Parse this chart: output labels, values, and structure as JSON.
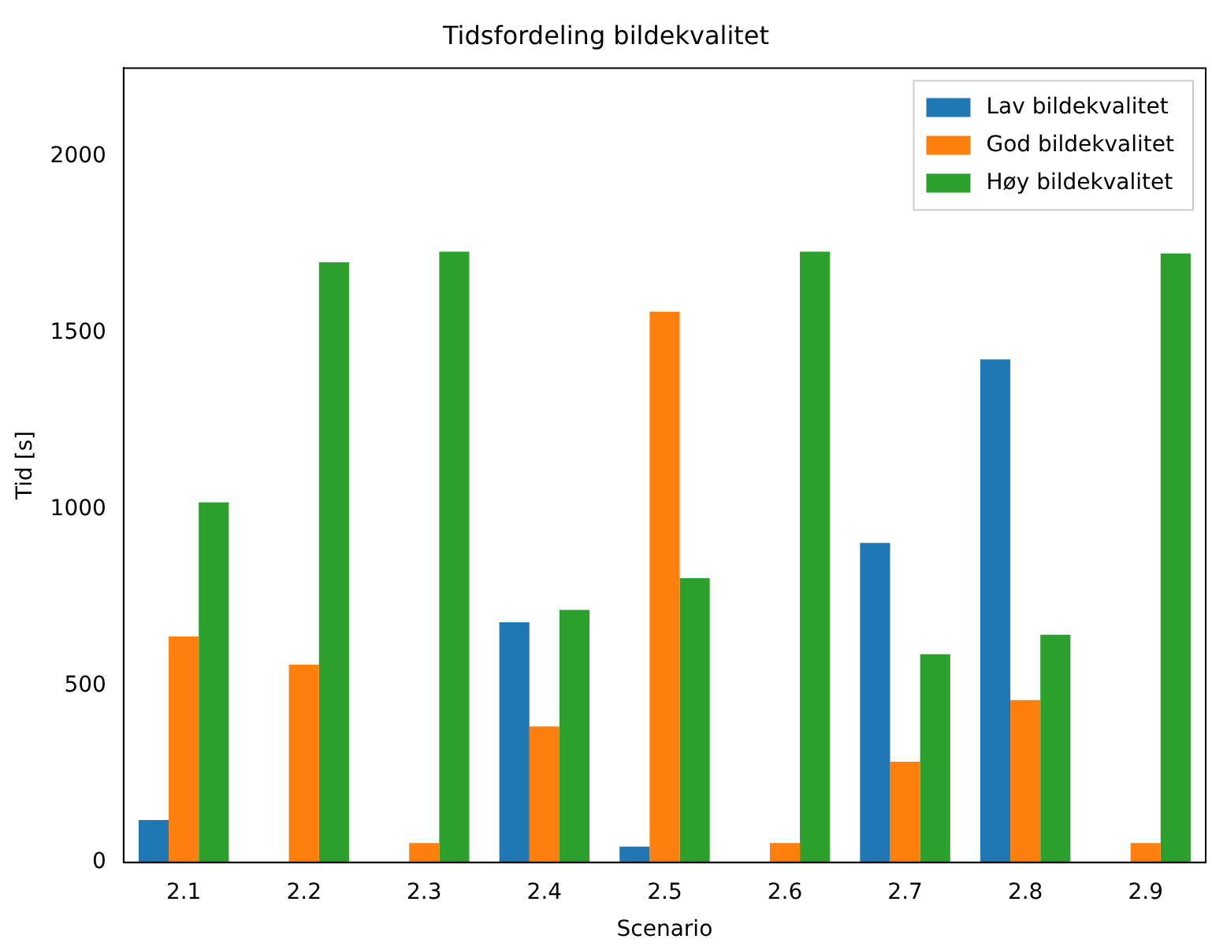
{
  "chart_data": {
    "type": "bar",
    "title": "Tidsfordeling bildekvalitet",
    "xlabel": "Scenario",
    "ylabel": "Tid [s]",
    "categories": [
      "2.1",
      "2.2",
      "2.3",
      "2.4",
      "2.5",
      "2.6",
      "2.7",
      "2.8",
      "2.9"
    ],
    "series": [
      {
        "name": "Lav bildekvalitet",
        "color": "#1f77b4",
        "values": [
          120,
          0,
          0,
          680,
          45,
          0,
          905,
          1425,
          0
        ]
      },
      {
        "name": "God bildekvalitet",
        "color": "#ff7f0e",
        "values": [
          640,
          560,
          55,
          385,
          1560,
          55,
          285,
          460,
          55
        ]
      },
      {
        "name": "Høy bildekvalitet",
        "color": "#2ca02c",
        "values": [
          1020,
          1700,
          1730,
          715,
          805,
          1730,
          590,
          645,
          1725
        ]
      }
    ],
    "ylim": [
      0,
      2250
    ],
    "yticks": [
      0,
      500,
      1000,
      1500,
      2000
    ],
    "grid": false,
    "legend": "top right"
  }
}
